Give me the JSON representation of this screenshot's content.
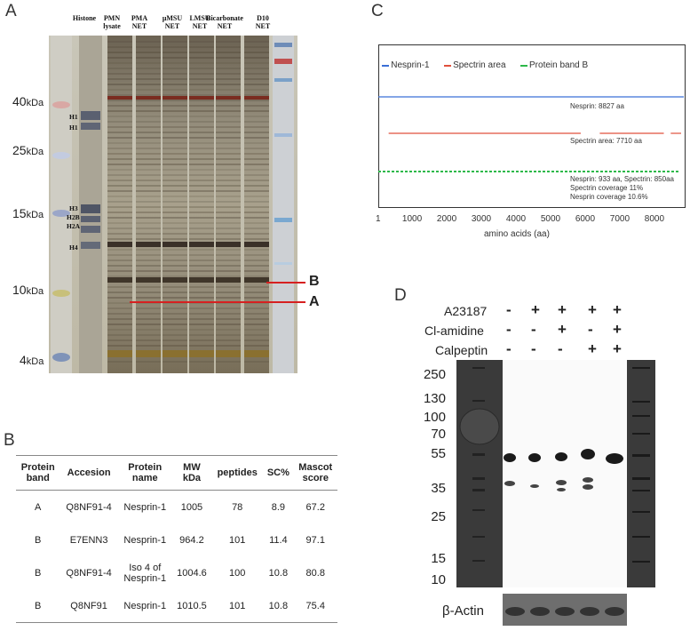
{
  "panel_a": {
    "label": "A",
    "lane_headers": [
      "Histone",
      "PMN\nlysate",
      "PMA\nNET",
      "μMSU\nNET",
      "LMSU\nNET",
      "Bicarbonate\nNET",
      "D10\nNET"
    ],
    "mw_markers": [
      {
        "value": "40",
        "unit": "kDa"
      },
      {
        "value": "25",
        "unit": "kDa"
      },
      {
        "value": "15",
        "unit": "kDa"
      },
      {
        "value": "10",
        "unit": "kDa"
      },
      {
        "value": "4",
        "unit": "kDa"
      }
    ],
    "histone_labels": [
      "H1",
      "H1",
      "H3",
      "H2B",
      "H2A",
      "H4"
    ],
    "band_labels": [
      "B",
      "A"
    ],
    "colors": {
      "band_line": "#d62020"
    }
  },
  "panel_b": {
    "label": "B",
    "headers": [
      "Protein\nband",
      "Accesion",
      "Protein\nname",
      "MW\nkDa",
      "peptides",
      "SC%",
      "Mascot\nscore"
    ],
    "rows": [
      [
        "A",
        "Q8NF91-4",
        "Nesprin-1",
        "1005",
        "78",
        "8.9",
        "67.2"
      ],
      [
        "B",
        "E7ENN3",
        "Nesprin-1",
        "964.2",
        "101",
        "11.4",
        "97.1"
      ],
      [
        "B",
        "Q8NF91-4",
        "Iso 4 of\nNesprin-1",
        "1004.6",
        "100",
        "10.8",
        "80.8"
      ],
      [
        "B",
        "Q8NF91",
        "Nesprin-1",
        "1010.5",
        "101",
        "10.8",
        "75.4"
      ]
    ]
  },
  "panel_c": {
    "label": "C",
    "chart_data": {
      "type": "line",
      "xlabel": "amino acids (aa)",
      "xlim": [
        1,
        8827
      ],
      "x_ticks": [
        "1",
        "1000",
        "2000",
        "3000",
        "4000",
        "5000",
        "6000",
        "7000",
        "8000"
      ],
      "x_tick_values": [
        1,
        1000,
        2000,
        3000,
        4000,
        5000,
        6000,
        7000,
        8000
      ],
      "legend": [
        {
          "name": "Nesprin-1",
          "color": "#3b6fd6"
        },
        {
          "name": "Spectrin area",
          "color": "#e0503c"
        },
        {
          "name": "Protein band B",
          "color": "#2db84a"
        }
      ],
      "series": [
        {
          "name": "Nesprin-1",
          "segments": [
            [
              1,
              8827
            ]
          ]
        },
        {
          "name": "Spectrin area",
          "segments": [
            [
              300,
              5850
            ],
            [
              6400,
              8250
            ],
            [
              8450,
              8750
            ]
          ]
        },
        {
          "name": "Protein band B",
          "segments": [
            [
              1,
              8700
            ]
          ]
        }
      ],
      "annotations": [
        "Nesprin: 8827 aa",
        "Spectrin area: 7710 aa",
        "Nesprin: 933 aa, Spectrin: 850aa",
        "Spectrin coverage 11%",
        "Nesprin coverage 10.6%"
      ]
    }
  },
  "panel_d": {
    "label": "D",
    "treatments": [
      {
        "name": "A23187",
        "signs": [
          "-",
          "+",
          "+",
          "+",
          "+"
        ]
      },
      {
        "name": "Cl-amidine",
        "signs": [
          "-",
          "-",
          "+",
          "-",
          "+"
        ]
      },
      {
        "name": "Calpeptin",
        "signs": [
          "-",
          "-",
          "-",
          "+",
          "+"
        ]
      }
    ],
    "mw_markers": [
      "250",
      "130",
      "100",
      "70",
      "55",
      "35",
      "25",
      "15",
      "10"
    ],
    "loading_control": "β-Actin"
  }
}
